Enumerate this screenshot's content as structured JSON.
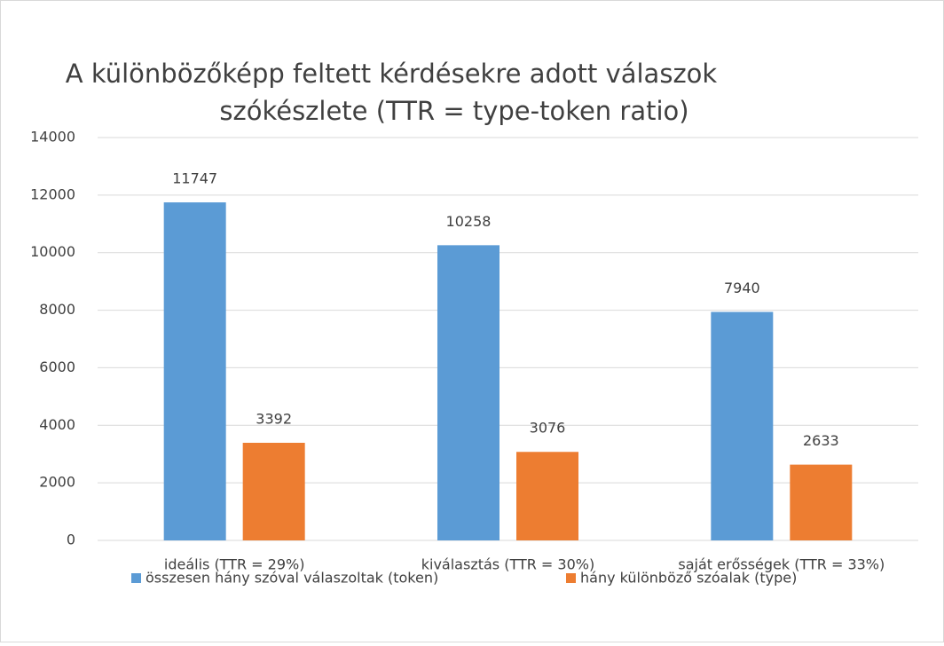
{
  "chart_data": {
    "type": "bar",
    "title": [
      "A különbözőképp feltett kérdésekre adott válaszok",
      "szókészlete (TTR = type-token ratio)"
    ],
    "categories": [
      "ideális (TTR = 29%)",
      "kiválasztás (TTR = 30%)",
      "saját erősségek (TTR = 33%)"
    ],
    "series": [
      {
        "name": "összesen hány szóval válaszoltak (token)",
        "color": "#5b9bd5",
        "values": [
          11747,
          10258,
          7940
        ]
      },
      {
        "name": "hány különböző szóalak (type)",
        "color": "#ed7d31",
        "values": [
          3392,
          3076,
          2633
        ]
      }
    ],
    "ylim": [
      0,
      14000
    ],
    "yticks": [
      0,
      2000,
      4000,
      6000,
      8000,
      10000,
      12000,
      14000
    ],
    "grid": true,
    "legend": "bottom"
  }
}
